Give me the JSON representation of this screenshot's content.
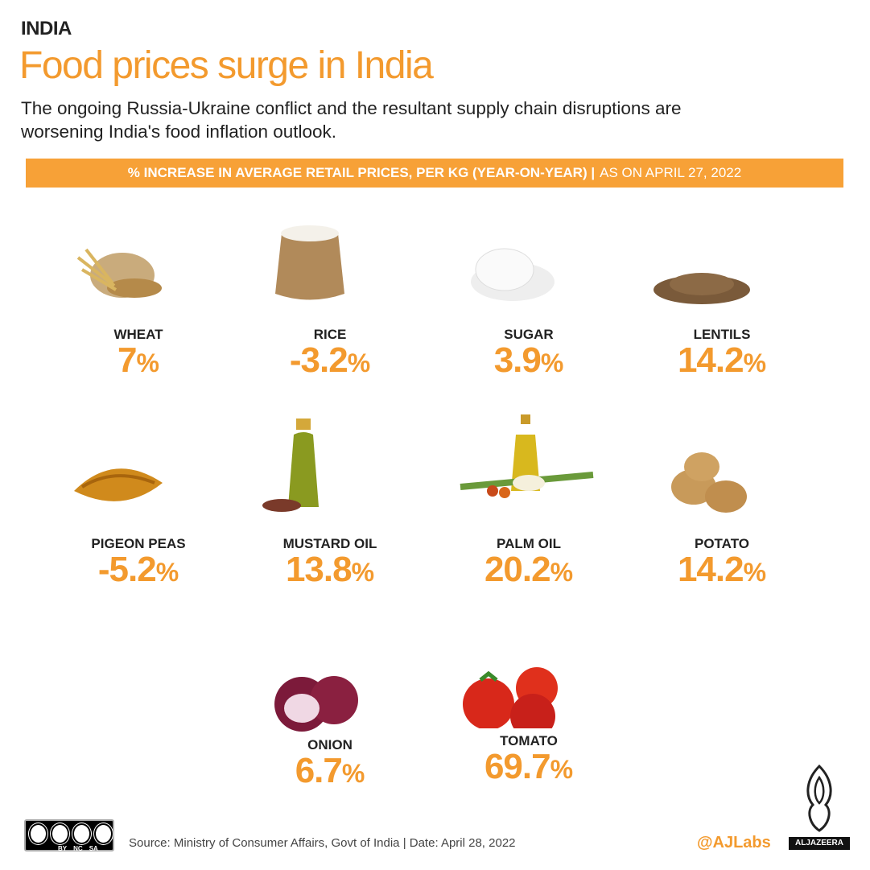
{
  "header": {
    "kicker": "INDIA",
    "title": "Food prices surge in India",
    "subtitle": [
      "The ongoing Russia-Ukraine conflict and the resultant supply chain disruptions are",
      "worsening India's food inflation outlook."
    ],
    "banner": {
      "main": "% INCREASE IN AVERAGE RETAIL PRICES, PER KG (YEAR-ON-YEAR) |",
      "date": "AS ON APRIL 27, 2022"
    }
  },
  "items": [
    {
      "name": "WHEAT",
      "number": "7",
      "unit": "%"
    },
    {
      "name": "RICE",
      "number": "-3.2",
      "unit": "%"
    },
    {
      "name": "SUGAR",
      "number": "3.9",
      "unit": "%"
    },
    {
      "name": "LENTILS",
      "number": "14.2",
      "unit": "%"
    },
    {
      "name": "PIGEON PEAS",
      "number": "-5.2",
      "unit": "%"
    },
    {
      "name": "MUSTARD OIL",
      "number": "13.8",
      "unit": "%"
    },
    {
      "name": "PALM OIL",
      "number": "20.2",
      "unit": "%"
    },
    {
      "name": "POTATO",
      "number": "14.2",
      "unit": "%"
    },
    {
      "name": "ONION",
      "number": "6.7",
      "unit": "%"
    },
    {
      "name": "TOMATO",
      "number": "69.7",
      "unit": "%"
    }
  ],
  "footer": {
    "license": [
      "BY",
      "NC",
      "SA"
    ],
    "source": "Source: Ministry of Consumer Affairs, Govt of India  |  Date: April 28, 2022",
    "handle": "@AJLabs",
    "logo": "ALJAZEERA"
  }
}
